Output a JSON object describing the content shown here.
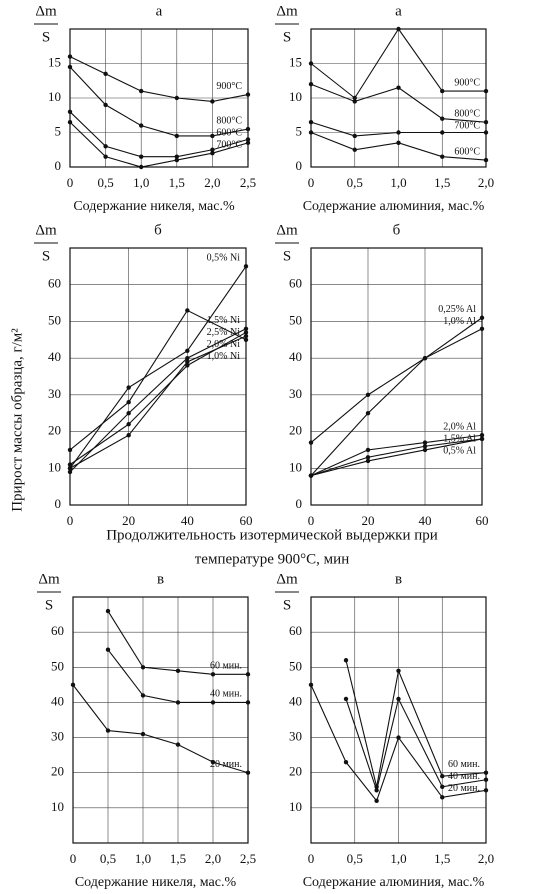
{
  "y_label": "Прирост массы образца, г/м²",
  "x_label": [
    "Продолжительность изотермической выдержки при",
    "температуре 900°С, мин"
  ],
  "chart_data": [
    {
      "type": "line",
      "title": "а",
      "y_numerator": "Δm",
      "y_denominator": "S",
      "x_label": "Содержание никеля, мас.%",
      "x": [
        0,
        0.5,
        1.0,
        1.5,
        2.0,
        2.5
      ],
      "xlim": [
        0,
        2.5
      ],
      "xticks": [
        0,
        {
          "value": 0.5,
          "label": "0,5"
        },
        {
          "value": 1.0,
          "label": "1,0"
        },
        {
          "value": 1.5,
          "label": "1,5"
        },
        {
          "value": 2.0,
          "label": "2,0"
        },
        {
          "value": 2.5,
          "label": "2,5"
        }
      ],
      "ylim": [
        0,
        20
      ],
      "yticks": [
        0,
        5,
        10,
        15
      ],
      "grid": true,
      "series": [
        {
          "name": "900°C",
          "color": "#111111",
          "values": [
            16,
            13.5,
            11,
            10,
            9.5,
            10.5
          ]
        },
        {
          "name": "800°C",
          "color": "#111111",
          "values": [
            14.5,
            9,
            6,
            4.5,
            4.5,
            5.5
          ]
        },
        {
          "name": "700°C",
          "color": "#111111",
          "values": [
            6.5,
            1.5,
            0,
            1,
            2,
            3.5
          ]
        },
        {
          "name": "600°C",
          "color": "#111111",
          "values": [
            8,
            3,
            1.5,
            1.5,
            2.5,
            4
          ]
        }
      ]
    },
    {
      "type": "line",
      "title": "а",
      "y_numerator": "Δm",
      "y_denominator": "S",
      "x_label": "Содержание алюминия, мас.%",
      "x": [
        0,
        0.5,
        1.0,
        1.5,
        2.0
      ],
      "xlim": [
        0,
        2.0
      ],
      "xticks": [
        0,
        {
          "value": 0.5,
          "label": "0,5"
        },
        {
          "value": 1.0,
          "label": "1,0"
        },
        {
          "value": 1.5,
          "label": "1,5"
        },
        {
          "value": 2.0,
          "label": "2,0"
        }
      ],
      "ylim": [
        0,
        20
      ],
      "yticks": [
        0,
        5,
        10,
        15
      ],
      "grid": true,
      "series": [
        {
          "name": "900°C",
          "color": "#111111",
          "values": [
            15,
            10,
            20,
            11,
            11
          ]
        },
        {
          "name": "800°C",
          "color": "#111111",
          "values": [
            12,
            9.5,
            11.5,
            7,
            6.5
          ]
        },
        {
          "name": "700°C",
          "color": "#111111",
          "values": [
            6.5,
            4.5,
            5,
            5,
            5
          ]
        },
        {
          "name": "600°C",
          "color": "#111111",
          "values": [
            5,
            2.5,
            3.5,
            1.5,
            1
          ]
        }
      ]
    },
    {
      "type": "line",
      "title": "б",
      "y_numerator": "Δm",
      "y_denominator": "S",
      "x": [
        0,
        20,
        40,
        60
      ],
      "xlim": [
        0,
        60
      ],
      "xticks": [
        0,
        20,
        40,
        60
      ],
      "ylim": [
        0,
        70
      ],
      "yticks": [
        0,
        10,
        20,
        30,
        40,
        50,
        60
      ],
      "grid": true,
      "series": [
        {
          "name": "0,5% Ni",
          "color": "#111111",
          "values": [
            10,
            32,
            42,
            65
          ]
        },
        {
          "name": "1,0% Ni",
          "color": "#111111",
          "values": [
            15,
            28,
            53,
            45
          ]
        },
        {
          "name": "1,5% Ni",
          "color": "#111111",
          "values": [
            9,
            25,
            40,
            48
          ]
        },
        {
          "name": "2,5% Ni",
          "color": "#111111",
          "values": [
            11,
            22,
            38,
            47
          ]
        },
        {
          "name": "2,0% Ni",
          "color": "#111111",
          "values": [
            10,
            19,
            39,
            46
          ]
        }
      ]
    },
    {
      "type": "line",
      "title": "б",
      "y_numerator": "Δm",
      "y_denominator": "S",
      "x": [
        0,
        20,
        40,
        60
      ],
      "xlim": [
        0,
        60
      ],
      "xticks": [
        0,
        20,
        40,
        60
      ],
      "ylim": [
        0,
        70
      ],
      "yticks": [
        0,
        10,
        20,
        30,
        40,
        50,
        60
      ],
      "grid": true,
      "series": [
        {
          "name": "0,25% Al",
          "color": "#111111",
          "values": [
            17,
            30,
            40,
            51
          ]
        },
        {
          "name": "1,0% Al",
          "color": "#111111",
          "values": [
            8,
            25,
            40,
            48
          ]
        },
        {
          "name": "2,0% Al",
          "color": "#111111",
          "values": [
            8,
            15,
            17,
            19
          ]
        },
        {
          "name": "1,5% Al",
          "color": "#111111",
          "values": [
            8,
            13,
            16,
            18
          ]
        },
        {
          "name": "0,5% Al",
          "color": "#111111",
          "values": [
            8,
            12,
            15,
            18
          ]
        }
      ]
    },
    {
      "type": "line",
      "title": "в",
      "y_numerator": "Δm",
      "y_denominator": "S",
      "x_label": "Содержание никеля, мас.%",
      "x": [
        0,
        0.5,
        1.0,
        1.5,
        2.0,
        2.5
      ],
      "xlim": [
        0,
        2.5
      ],
      "xticks": [
        0,
        {
          "value": 0.5,
          "label": "0,5"
        },
        {
          "value": 1.0,
          "label": "1,0"
        },
        {
          "value": 1.5,
          "label": "1,5"
        },
        {
          "value": 2.0,
          "label": "2,0"
        },
        {
          "value": 2.5,
          "label": "2,5"
        }
      ],
      "ylim": [
        0,
        70
      ],
      "yticks": [
        10,
        20,
        30,
        40,
        50,
        60
      ],
      "grid": true,
      "series": [
        {
          "name": "60 мин.",
          "color": "#111111",
          "values": [
            null,
            66,
            50,
            49,
            48,
            48
          ]
        },
        {
          "name": "40 мин.",
          "color": "#111111",
          "values": [
            null,
            55,
            42,
            40,
            40,
            40
          ]
        },
        {
          "name": "20 мин.",
          "color": "#111111",
          "values": [
            45,
            32,
            31,
            28,
            23,
            20
          ]
        }
      ]
    },
    {
      "type": "line",
      "title": "в",
      "y_numerator": "Δm",
      "y_denominator": "S",
      "x_label": "Содержание алюминия, мас.%",
      "x": [
        0,
        0.4,
        0.75,
        1.0,
        1.5,
        2.0
      ],
      "xlim": [
        0,
        2.0
      ],
      "xticks": [
        0,
        {
          "value": 0.5,
          "label": "0,5"
        },
        {
          "value": 1.0,
          "label": "1,0"
        },
        {
          "value": 1.5,
          "label": "1,5"
        },
        {
          "value": 2.0,
          "label": "2,0"
        }
      ],
      "ylim": [
        0,
        70
      ],
      "yticks": [
        10,
        20,
        30,
        40,
        50,
        60
      ],
      "grid": true,
      "series": [
        {
          "name": "60 мин.",
          "color": "#111111",
          "values": [
            null,
            52,
            16,
            49,
            19,
            20
          ]
        },
        {
          "name": "40 мин.",
          "color": "#111111",
          "values": [
            null,
            41,
            15,
            41,
            16,
            18
          ]
        },
        {
          "name": "20 мин.",
          "color": "#111111",
          "values": [
            45,
            23,
            12,
            30,
            13,
            15
          ]
        }
      ]
    }
  ]
}
